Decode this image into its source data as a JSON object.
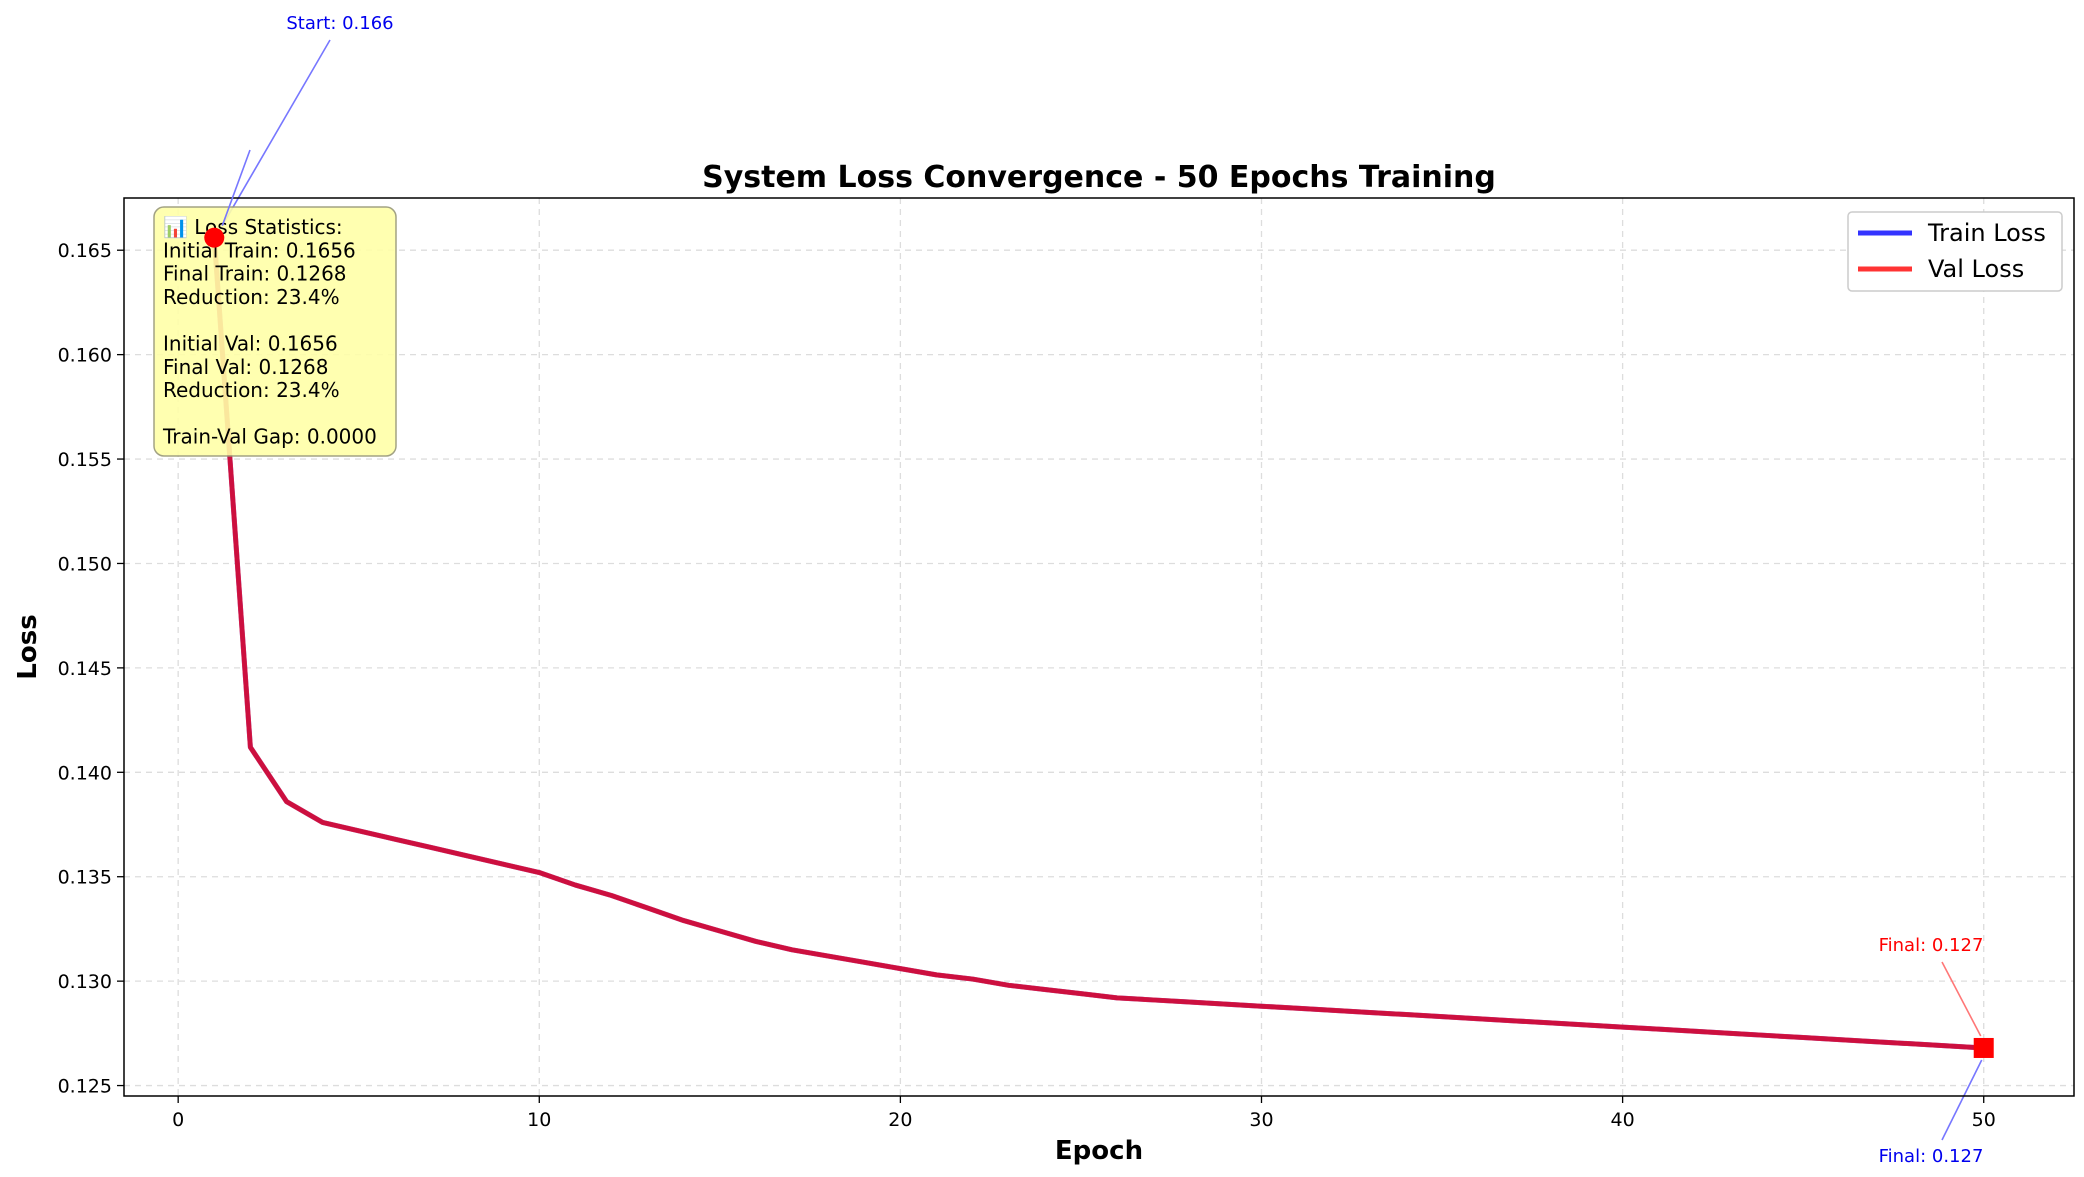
{
  "chart_data": {
    "type": "line",
    "title": "System Loss Convergence - 50 Epochs Training",
    "xlabel": "Epoch",
    "ylabel": "Loss",
    "xlim": [
      -1.5,
      52.5
    ],
    "ylim": [
      0.1245,
      0.1675
    ],
    "xticks": [
      0,
      10,
      20,
      30,
      40,
      50
    ],
    "xtick_labels": [
      "0",
      "10",
      "20",
      "30",
      "40",
      "50"
    ],
    "yticks": [
      0.125,
      0.13,
      0.135,
      0.14,
      0.145,
      0.15,
      0.155,
      0.16,
      0.165
    ],
    "ytick_labels": [
      "0.125",
      "0.130",
      "0.135",
      "0.140",
      "0.145",
      "0.150",
      "0.155",
      "0.160",
      "0.165"
    ],
    "grid": true,
    "legend_position": "top-right",
    "x": [
      1,
      2,
      3,
      4,
      5,
      6,
      7,
      8,
      9,
      10,
      11,
      12,
      13,
      14,
      15,
      16,
      17,
      18,
      19,
      20,
      21,
      22,
      23,
      24,
      25,
      26,
      27,
      28,
      29,
      30,
      31,
      32,
      33,
      34,
      35,
      36,
      37,
      38,
      39,
      40,
      41,
      42,
      43,
      44,
      45,
      46,
      47,
      48,
      49,
      50
    ],
    "series": [
      {
        "name": "Train Loss",
        "color": "#3333ff",
        "values": [
          0.1656,
          0.1412,
          0.1386,
          0.1376,
          0.1372,
          0.1368,
          0.1364,
          0.136,
          0.1356,
          0.1352,
          0.1346,
          0.1341,
          0.1335,
          0.1329,
          0.1324,
          0.1319,
          0.1315,
          0.1312,
          0.1309,
          0.1306,
          0.1303,
          0.1301,
          0.1298,
          0.1296,
          0.1294,
          0.1292,
          0.1291,
          0.129,
          0.1289,
          0.1288,
          0.1287,
          0.1286,
          0.1285,
          0.1284,
          0.1283,
          0.1282,
          0.1281,
          0.128,
          0.1279,
          0.1278,
          0.1277,
          0.1276,
          0.1275,
          0.1274,
          0.1273,
          0.1272,
          0.1271,
          0.127,
          0.1269,
          0.1268
        ]
      },
      {
        "name": "Val Loss",
        "color": "#ff3333",
        "values": [
          0.1656,
          0.1412,
          0.1386,
          0.1376,
          0.1372,
          0.1368,
          0.1364,
          0.136,
          0.1356,
          0.1352,
          0.1346,
          0.1341,
          0.1335,
          0.1329,
          0.1324,
          0.1319,
          0.1315,
          0.1312,
          0.1309,
          0.1306,
          0.1303,
          0.1301,
          0.1298,
          0.1296,
          0.1294,
          0.1292,
          0.1291,
          0.129,
          0.1289,
          0.1288,
          0.1287,
          0.1286,
          0.1285,
          0.1284,
          0.1283,
          0.1282,
          0.1281,
          0.128,
          0.1279,
          0.1278,
          0.1277,
          0.1276,
          0.1275,
          0.1274,
          0.1273,
          0.1272,
          0.1271,
          0.127,
          0.1269,
          0.1268
        ]
      }
    ],
    "combined_line_color": "#cc0f3f",
    "start_marker": {
      "x": 1,
      "y": 0.1656,
      "color": "#ff0000",
      "shape": "circle"
    },
    "end_marker": {
      "x": 50,
      "y": 0.1268,
      "color": "#ff0000",
      "shape": "square"
    },
    "annotations": [
      {
        "text": "Start: 0.166",
        "color": "#0000ee",
        "x": 1,
        "y": 0.1656
      },
      {
        "text": "Final: 0.127",
        "color": "#ff0000",
        "x": 50,
        "y": 0.1268
      },
      {
        "text": "Final: 0.127",
        "color": "#0000ee",
        "x": 50,
        "y": 0.1268
      }
    ],
    "stats_box": {
      "background": "#ffffa8",
      "lines": [
        "📊 Loss Statistics:",
        "Initial Train: 0.1656",
        "Final Train: 0.1268",
        "Reduction: 23.4%",
        "",
        "Initial Val: 0.1656",
        "Final Val: 0.1268",
        "Reduction: 23.4%",
        "",
        "Train-Val Gap: 0.0000"
      ]
    }
  }
}
